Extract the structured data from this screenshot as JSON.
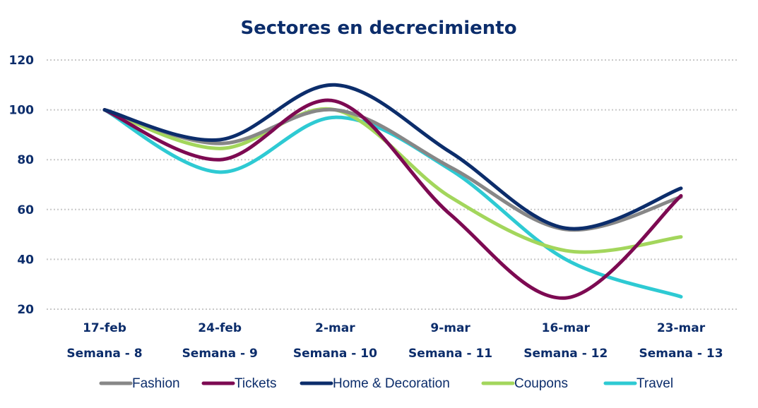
{
  "chart_data": {
    "type": "line",
    "title": "Sectores en decrecimiento",
    "xlabel": "",
    "ylabel": "",
    "categories": [
      "17-feb",
      "24-feb",
      "2-mar",
      "9-mar",
      "16-mar",
      "23-mar"
    ],
    "sub_categories": [
      "Semana - 8",
      "Semana - 9",
      "Semana - 10",
      "Semana - 11",
      "Semana - 12",
      "Semana - 13"
    ],
    "ylim": [
      20,
      120
    ],
    "yticks": [
      20,
      40,
      60,
      80,
      100,
      120
    ],
    "grid": true,
    "smooth": true,
    "legend_position": "bottom",
    "series": [
      {
        "name": "Fashion",
        "color": "#878787",
        "values": [
          100,
          86.5,
          100,
          77,
          52,
          65
        ]
      },
      {
        "name": "Tickets",
        "color": "#7d0a52",
        "values": [
          100,
          80,
          103.5,
          58,
          24.5,
          65.5
        ]
      },
      {
        "name": "Home & Decoration",
        "color": "#0c2d6b",
        "values": [
          100,
          88,
          110,
          83,
          52.5,
          68.5
        ]
      },
      {
        "name": "Coupons",
        "color": "#a3d65c",
        "values": [
          100,
          84.5,
          100,
          65,
          43.5,
          49
        ]
      },
      {
        "name": "Travel",
        "color": "#2ecad3",
        "values": [
          100,
          75,
          97,
          76,
          40,
          25
        ]
      }
    ]
  }
}
